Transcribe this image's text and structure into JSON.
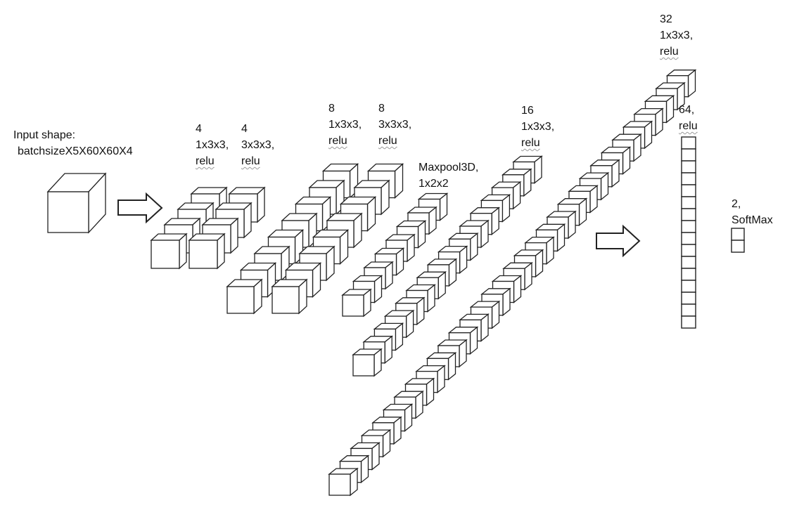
{
  "input": {
    "label": "Input shape:",
    "shape": "batchsizeX5X60X60X4"
  },
  "layers": [
    {
      "id": "conv1",
      "lines": [
        "4",
        "1x3x3,",
        "relu"
      ]
    },
    {
      "id": "conv2",
      "lines": [
        "4",
        "3x3x3,",
        "relu"
      ]
    },
    {
      "id": "conv3",
      "lines": [
        "8",
        "1x3x3,",
        "relu"
      ]
    },
    {
      "id": "conv4",
      "lines": [
        "8",
        "3x3x3,",
        "relu"
      ]
    },
    {
      "id": "pool",
      "lines": [
        "Maxpool3D,",
        "1x2x2"
      ]
    },
    {
      "id": "conv5",
      "lines": [
        "16",
        "1x3x3,",
        "relu"
      ]
    },
    {
      "id": "conv6",
      "lines": [
        "32",
        "1x3x3,",
        "relu"
      ]
    },
    {
      "id": "dense",
      "lines": [
        "64,",
        "relu"
      ]
    },
    {
      "id": "output",
      "lines": [
        "2,",
        "SoftMax"
      ]
    }
  ],
  "stack_counts": {
    "conv1": 4,
    "conv2": 4,
    "conv3": 8,
    "conv4": 8,
    "pool": 8,
    "conv5": 16,
    "conv6": 32,
    "dense": 16,
    "output": 2
  },
  "colors": {
    "stroke": "#222222",
    "face": "#ffffff"
  }
}
